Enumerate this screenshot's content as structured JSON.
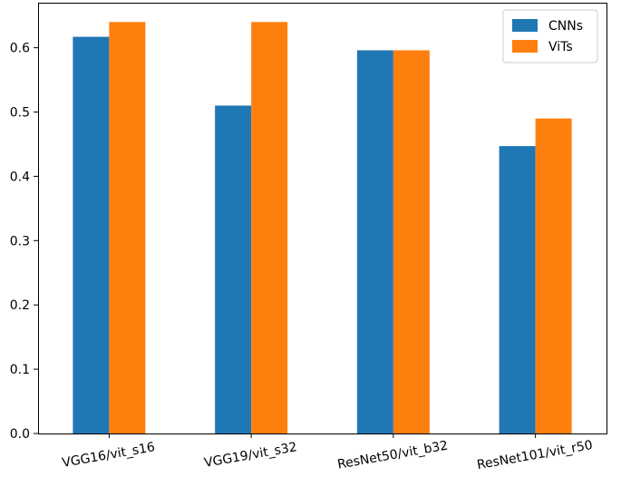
{
  "chart_data": {
    "type": "bar",
    "title": "",
    "xlabel": "",
    "ylabel": "",
    "categories": [
      "VGG16/vit_s16",
      "VGG19/vit_s32",
      "ResNet50/vit_b32",
      "ResNet101/vit_r50"
    ],
    "series": [
      {
        "name": "CNNs",
        "color": "#1f77b4",
        "values": [
          0.617,
          0.51,
          0.596,
          0.447
        ]
      },
      {
        "name": "ViTs",
        "color": "#ff7f0e",
        "values": [
          0.64,
          0.64,
          0.596,
          0.49
        ]
      }
    ],
    "ylim": [
      0,
      0.67
    ],
    "yticks": [
      0.0,
      0.1,
      0.2,
      0.3,
      0.4,
      0.5,
      0.6
    ],
    "ytick_labels": [
      "0.0",
      "0.1",
      "0.2",
      "0.3",
      "0.4",
      "0.5",
      "0.6"
    ],
    "xtick_rotation": "slightly rotated",
    "grid": false,
    "legend": "top-right"
  }
}
